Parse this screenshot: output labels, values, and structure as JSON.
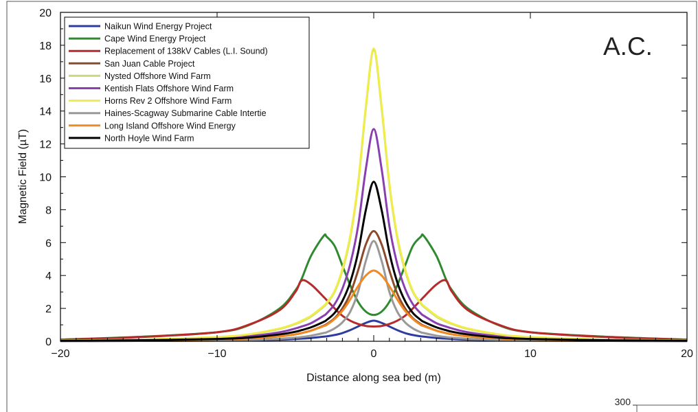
{
  "chart_data": {
    "type": "line",
    "xlabel": "Distance along sea bed (m)",
    "ylabel": "Magnetic Field (µT)",
    "annotation": "A.C.",
    "xlim": [
      -20,
      20
    ],
    "ylim": [
      0,
      20
    ],
    "x_ticks": [
      -20,
      -10,
      0,
      10,
      20
    ],
    "x_tick_labels": [
      "−20",
      "−10",
      "0",
      "10",
      "20"
    ],
    "y_ticks": [
      0,
      2,
      4,
      6,
      8,
      10,
      12,
      14,
      16,
      18,
      20
    ],
    "y_tick_labels": [
      "0",
      "2",
      "4",
      "6",
      "8",
      "10",
      "12",
      "14",
      "16",
      "18",
      "20"
    ],
    "grid": false,
    "legend_position": "top-left",
    "x": [
      -20,
      -15,
      -10,
      -8,
      -6,
      -5,
      -4.6,
      -4,
      -3.2,
      -3,
      -2.5,
      -2,
      -1.5,
      -1,
      -0.5,
      0,
      0.5,
      1,
      1.5,
      2,
      2.5,
      3,
      3.2,
      4,
      4.6,
      5,
      6,
      8,
      10,
      15,
      20
    ],
    "series": [
      {
        "name": "Naikun Wind Energy Project",
        "color": "#2e3c9b",
        "values": [
          0.01,
          0.02,
          0.04,
          0.06,
          0.1,
          0.14,
          0.16,
          0.2,
          0.28,
          0.3,
          0.38,
          0.5,
          0.68,
          0.9,
          1.12,
          1.25,
          1.12,
          0.9,
          0.68,
          0.5,
          0.38,
          0.3,
          0.28,
          0.2,
          0.16,
          0.14,
          0.1,
          0.06,
          0.04,
          0.02,
          0.01
        ]
      },
      {
        "name": "Cape Wind Energy Project",
        "color": "#2f8a2f",
        "values": [
          0.1,
          0.27,
          0.55,
          0.97,
          2.0,
          3.1,
          3.8,
          5.2,
          6.4,
          6.35,
          5.8,
          4.6,
          3.4,
          2.4,
          1.8,
          1.6,
          1.8,
          2.4,
          3.4,
          4.6,
          5.8,
          6.35,
          6.4,
          5.2,
          3.8,
          3.1,
          2.0,
          0.97,
          0.55,
          0.27,
          0.1
        ]
      },
      {
        "name": "Replacement of 138kV Cables (L.I. Sound)",
        "color": "#b52a2a",
        "values": [
          0.1,
          0.25,
          0.55,
          1.0,
          1.9,
          3.0,
          3.7,
          3.45,
          2.7,
          2.5,
          2.0,
          1.55,
          1.25,
          1.05,
          0.93,
          0.9,
          0.93,
          1.05,
          1.25,
          1.55,
          2.0,
          2.5,
          2.7,
          3.45,
          3.7,
          3.0,
          1.9,
          1.0,
          0.55,
          0.25,
          0.1
        ]
      },
      {
        "name": "San Juan Cable Project",
        "color": "#8b4a2b",
        "values": [
          0.02,
          0.04,
          0.1,
          0.16,
          0.3,
          0.42,
          0.5,
          0.65,
          0.95,
          1.05,
          1.4,
          2.0,
          2.9,
          4.3,
          5.9,
          6.7,
          5.9,
          4.3,
          2.9,
          2.0,
          1.4,
          1.05,
          0.95,
          0.65,
          0.5,
          0.42,
          0.3,
          0.16,
          0.1,
          0.04,
          0.02
        ]
      },
      {
        "name": "Nysted Offshore Wind Farm",
        "color": "#c8da7a",
        "values": [
          0.05,
          0.1,
          0.25,
          0.4,
          0.75,
          1.05,
          1.2,
          1.5,
          2.1,
          2.3,
          3.0,
          4.3,
          6.3,
          9.5,
          14.2,
          17.7,
          14.2,
          9.5,
          6.3,
          4.3,
          3.0,
          2.3,
          2.1,
          1.5,
          1.2,
          1.05,
          0.75,
          0.4,
          0.25,
          0.1,
          0.05
        ]
      },
      {
        "name": "Kentish Flats Offshore Wind Farm",
        "color": "#8a3fb0",
        "values": [
          0.04,
          0.08,
          0.18,
          0.3,
          0.55,
          0.78,
          0.9,
          1.1,
          1.55,
          1.7,
          2.25,
          3.2,
          4.7,
          7.0,
          10.5,
          12.9,
          10.5,
          7.0,
          4.7,
          3.2,
          2.25,
          1.7,
          1.55,
          1.1,
          0.9,
          0.78,
          0.55,
          0.3,
          0.18,
          0.08,
          0.04
        ]
      },
      {
        "name": "Horns Rev 2 Offshore Wind Farm",
        "color": "#f0ec4a",
        "values": [
          0.05,
          0.1,
          0.26,
          0.42,
          0.78,
          1.08,
          1.25,
          1.55,
          2.15,
          2.35,
          3.05,
          4.4,
          6.4,
          9.6,
          14.3,
          17.8,
          14.3,
          9.6,
          6.4,
          4.4,
          3.05,
          2.35,
          2.15,
          1.55,
          1.25,
          1.08,
          0.78,
          0.42,
          0.26,
          0.1,
          0.05
        ]
      },
      {
        "name": "Haines-Scagway Submarine Cable Intertie",
        "color": "#999999",
        "values": [
          0.01,
          0.02,
          0.05,
          0.08,
          0.15,
          0.22,
          0.26,
          0.34,
          0.5,
          0.55,
          0.78,
          1.15,
          1.8,
          3.0,
          4.9,
          6.1,
          4.9,
          3.0,
          1.8,
          1.15,
          0.78,
          0.55,
          0.5,
          0.34,
          0.26,
          0.22,
          0.15,
          0.08,
          0.05,
          0.02,
          0.01
        ]
      },
      {
        "name": "Long Island Offshore Wind Energy",
        "color": "#f08a24",
        "values": [
          0.02,
          0.04,
          0.1,
          0.17,
          0.3,
          0.42,
          0.5,
          0.65,
          0.92,
          1.0,
          1.35,
          1.85,
          2.55,
          3.35,
          4.0,
          4.3,
          4.0,
          3.35,
          2.55,
          1.85,
          1.35,
          1.0,
          0.92,
          0.65,
          0.5,
          0.42,
          0.3,
          0.17,
          0.1,
          0.04,
          0.02
        ]
      },
      {
        "name": "North Hoyle Wind Farm",
        "color": "#000000",
        "values": [
          0.03,
          0.06,
          0.14,
          0.22,
          0.42,
          0.58,
          0.68,
          0.85,
          1.18,
          1.3,
          1.72,
          2.45,
          3.6,
          5.4,
          8.0,
          9.7,
          8.0,
          5.4,
          3.6,
          2.45,
          1.72,
          1.3,
          1.18,
          0.85,
          0.68,
          0.58,
          0.42,
          0.22,
          0.14,
          0.06,
          0.03
        ]
      }
    ]
  },
  "inset": {
    "tick_label": "300"
  }
}
